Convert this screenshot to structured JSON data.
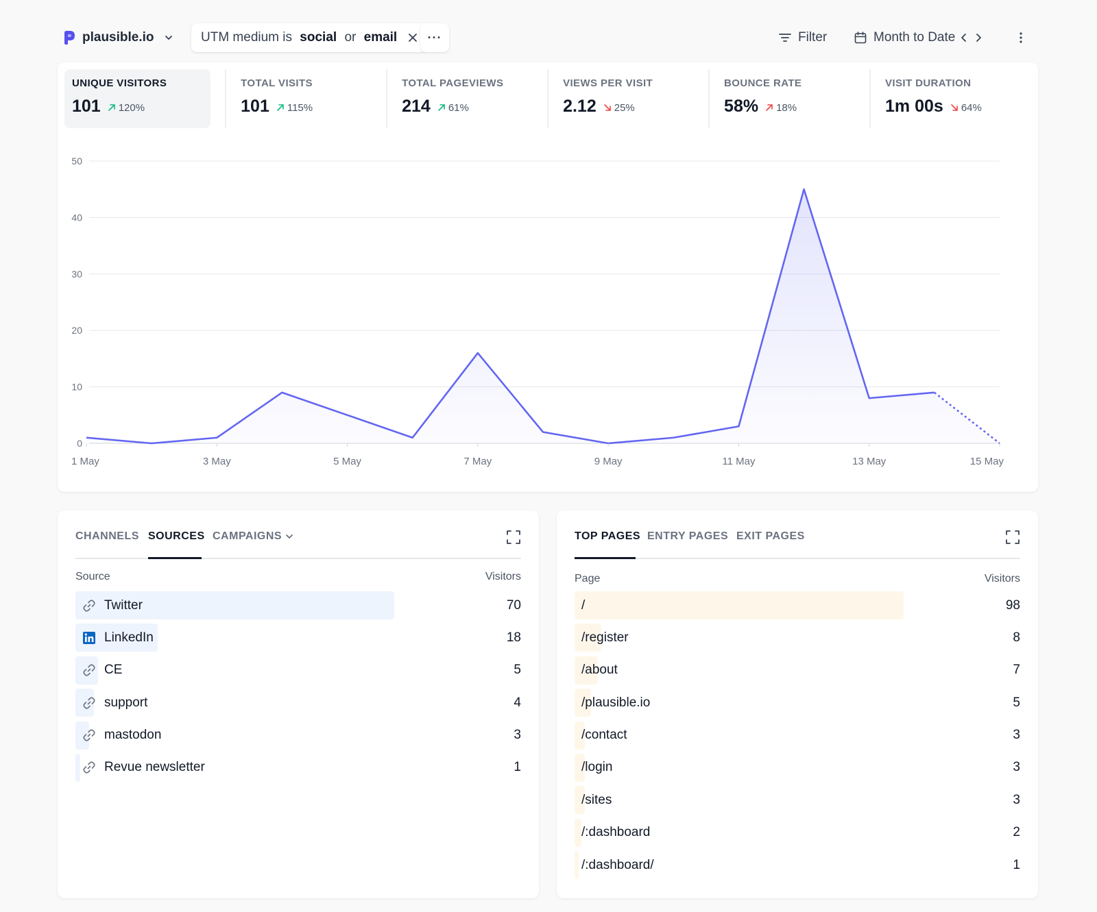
{
  "header": {
    "site_name": "plausible.io",
    "filter_pill": {
      "prefix": "UTM medium is ",
      "value1": "social",
      "joiner": " or ",
      "value2": "email"
    },
    "more_label": "···",
    "filter_label": "Filter",
    "date_label": "Month to Date"
  },
  "metrics": [
    {
      "label": "UNIQUE VISITORS",
      "value": "101",
      "change": "120%",
      "direction": "up",
      "good": true
    },
    {
      "label": "TOTAL VISITS",
      "value": "101",
      "change": "115%",
      "direction": "up",
      "good": true
    },
    {
      "label": "TOTAL PAGEVIEWS",
      "value": "214",
      "change": "61%",
      "direction": "up",
      "good": true
    },
    {
      "label": "VIEWS PER VISIT",
      "value": "2.12",
      "change": "25%",
      "direction": "down",
      "good": false
    },
    {
      "label": "BOUNCE RATE",
      "value": "58%",
      "change": "18%",
      "direction": "up",
      "good": false
    },
    {
      "label": "VISIT DURATION",
      "value": "1m 00s",
      "change": "64%",
      "direction": "down",
      "good": false
    }
  ],
  "chart_data": {
    "type": "area",
    "x": [
      "1 May",
      "2 May",
      "3 May",
      "4 May",
      "5 May",
      "6 May",
      "7 May",
      "8 May",
      "9 May",
      "10 May",
      "11 May",
      "12 May",
      "13 May",
      "14 May",
      "15 May"
    ],
    "x_tick_labels": [
      "1 May",
      "3 May",
      "5 May",
      "7 May",
      "9 May",
      "11 May",
      "13 May",
      "15 May"
    ],
    "series": [
      {
        "values": [
          1,
          0,
          1,
          9,
          5,
          1,
          16,
          2,
          0,
          1,
          3,
          45,
          8,
          9,
          0
        ]
      }
    ],
    "incomplete_from_index": 13,
    "ylim": [
      0,
      50
    ],
    "y_ticks": [
      0,
      10,
      20,
      30,
      40,
      50
    ],
    "grid": true,
    "line_color": "#6366f1"
  },
  "sources": {
    "tabs": [
      "CHANNELS",
      "SOURCES",
      "CAMPAIGNS"
    ],
    "active_tab": "SOURCES",
    "col_label": "Source",
    "col_value": "Visitors",
    "rows": [
      {
        "label": "Twitter",
        "value": "70",
        "icon": "link-icon"
      },
      {
        "label": "LinkedIn",
        "value": "18",
        "icon": "linkedin-icon"
      },
      {
        "label": "CE",
        "value": "5",
        "icon": "link-icon"
      },
      {
        "label": "support",
        "value": "4",
        "icon": "link-icon"
      },
      {
        "label": "mastodon",
        "value": "3",
        "icon": "link-icon"
      },
      {
        "label": "Revue newsletter",
        "value": "1",
        "icon": "link-icon"
      }
    ]
  },
  "pages": {
    "tabs": [
      "TOP PAGES",
      "ENTRY PAGES",
      "EXIT PAGES"
    ],
    "active_tab": "TOP PAGES",
    "col_label": "Page",
    "col_value": "Visitors",
    "rows": [
      {
        "label": "/",
        "value": "98"
      },
      {
        "label": "/register",
        "value": "8"
      },
      {
        "label": "/about",
        "value": "7"
      },
      {
        "label": "/plausible.io",
        "value": "5"
      },
      {
        "label": "/contact",
        "value": "3"
      },
      {
        "label": "/login",
        "value": "3"
      },
      {
        "label": "/sites",
        "value": "3"
      },
      {
        "label": "/:dashboard",
        "value": "2"
      },
      {
        "label": "/:dashboard/",
        "value": "1"
      }
    ]
  },
  "colors": {
    "accent": "#6366f1",
    "good": "#10b981",
    "bad": "#ef4444",
    "source_bar": "#eef4fd",
    "page_bar": "#fef7e9"
  }
}
